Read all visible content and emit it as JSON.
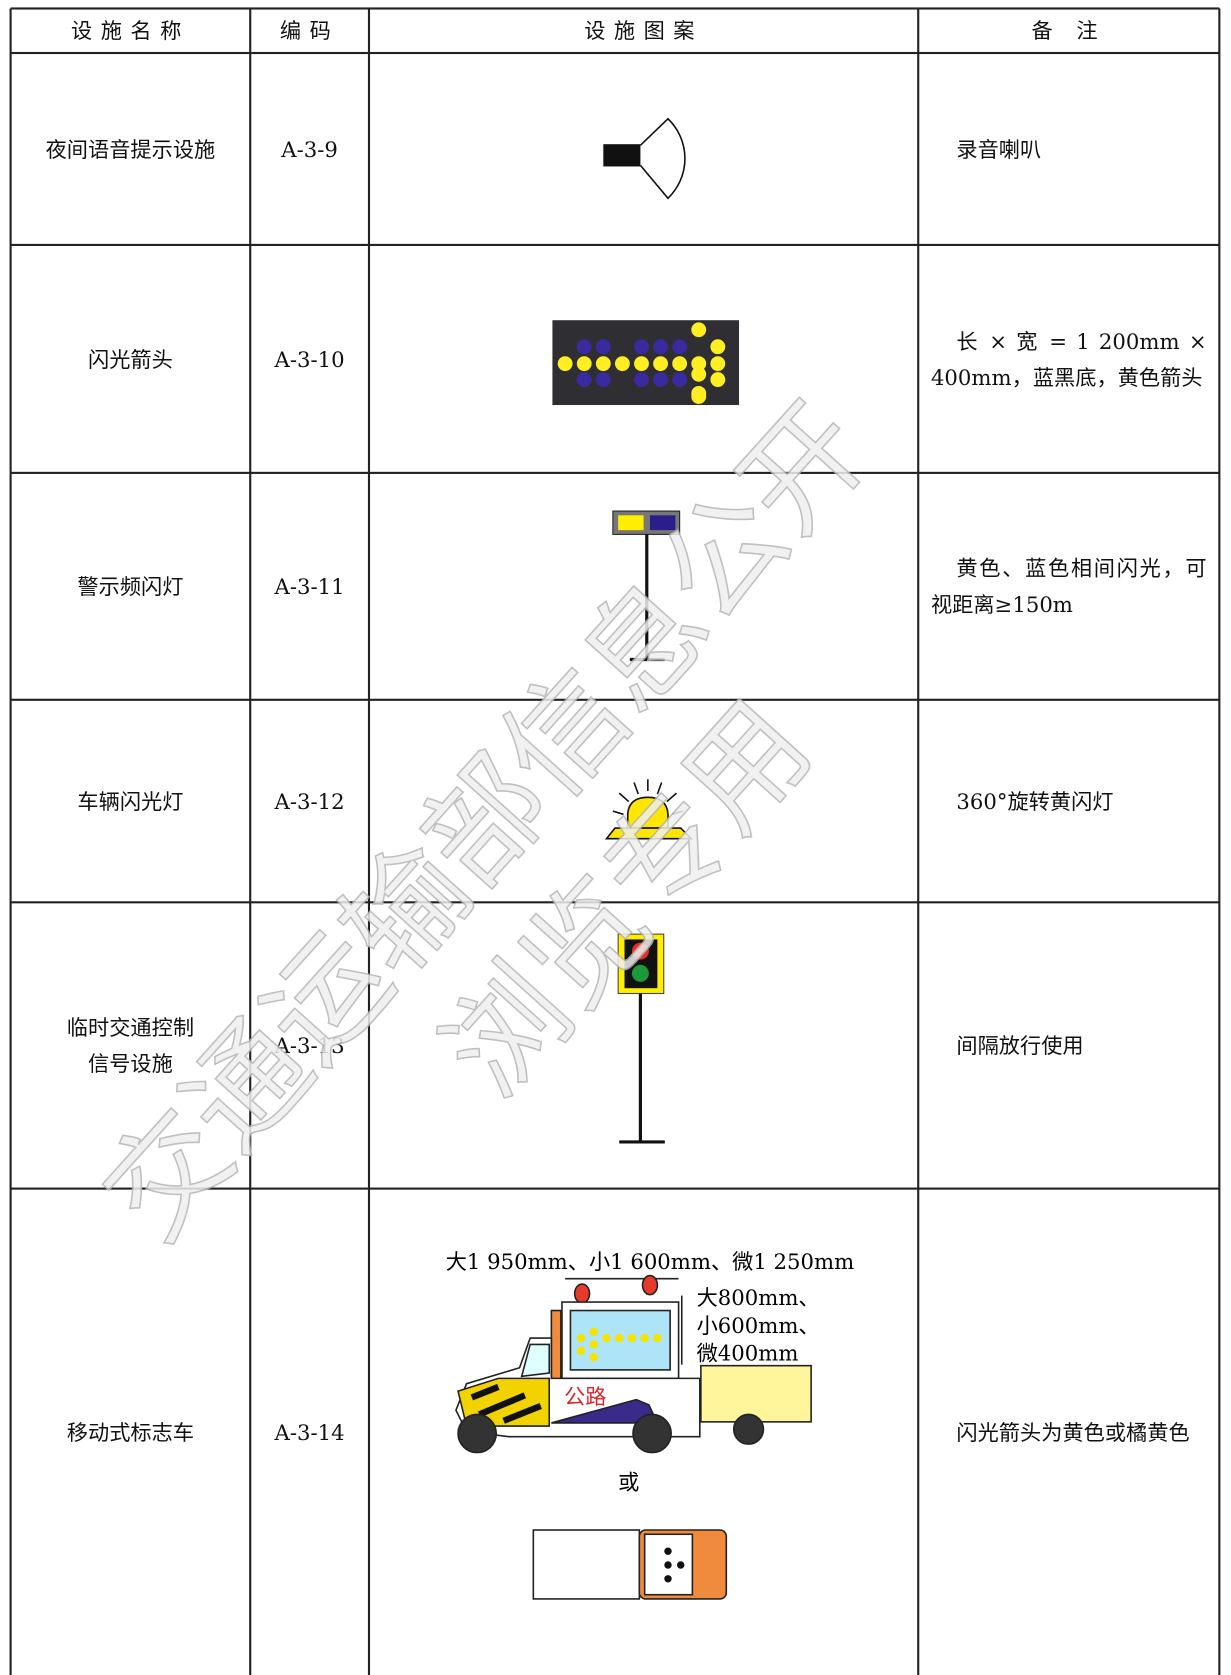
{
  "header": {
    "columns": [
      "设施名称",
      "编码",
      "设施图案",
      "备 注"
    ]
  },
  "rows": [
    {
      "name": [
        "夜间语音提示设施"
      ],
      "code": "A-3-9",
      "note": "录音喇叭"
    },
    {
      "name": [
        "闪光箭头"
      ],
      "code": "A-3-10",
      "note": "长 × 宽 = 1 200mm × 400mm，蓝黑底，黄色箭头"
    },
    {
      "name": [
        "警示频闪灯"
      ],
      "code": "A-3-11",
      "note": "黄色、蓝色相间闪光，可视距离≥150m"
    },
    {
      "name": [
        "车辆闪光灯"
      ],
      "code": "A-3-12",
      "note": "360°旋转黄闪灯"
    },
    {
      "name": [
        "临时交通控制",
        "信号设施"
      ],
      "code": "A-3-13",
      "note": "间隔放行使用"
    },
    {
      "name": [
        "移动式标志车"
      ],
      "code": "A-3-14",
      "note": "闪光箭头为黄色或橘黄色"
    }
  ],
  "figure": {
    "truck_width": "大1 950mm、小1 600mm、微1 250mm",
    "truck_height": [
      "大800mm、",
      "小600mm、",
      "微400mm"
    ],
    "truck_text": "公路",
    "or": "或"
  },
  "watermark": [
    "交通运输部信息公开",
    "浏览专用"
  ]
}
